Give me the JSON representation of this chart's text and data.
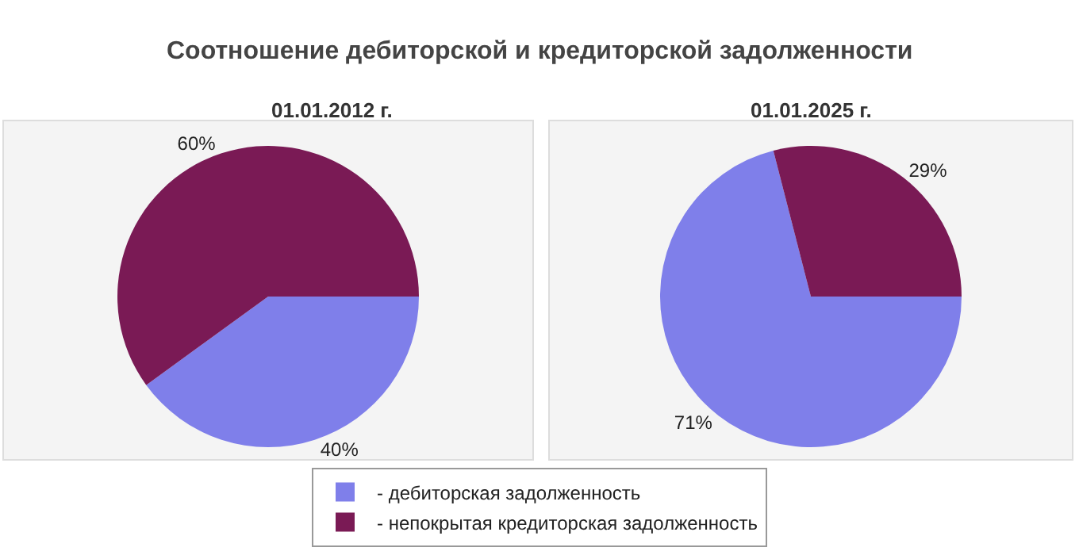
{
  "chart_data": [
    {
      "type": "pie",
      "title": "Соотношение дебиторской и кредиторской задолженности",
      "subtitle": "01.01.2012 г.",
      "categories": [
        "- дебиторская задолженность",
        "- непокрытая кредиторская задолженность"
      ],
      "values": [
        40,
        60
      ],
      "value_labels": [
        "40%",
        "60%"
      ],
      "colors": [
        "#7f7fea",
        "#7a1a55"
      ],
      "legend": "bottom"
    },
    {
      "type": "pie",
      "subtitle": "01.01.2025 г.",
      "values": [
        71,
        29
      ],
      "value_labels": [
        "71%",
        "29%"
      ],
      "colors": [
        "#7f7fea",
        "#7a1a55"
      ],
      "legend": false
    }
  ]
}
